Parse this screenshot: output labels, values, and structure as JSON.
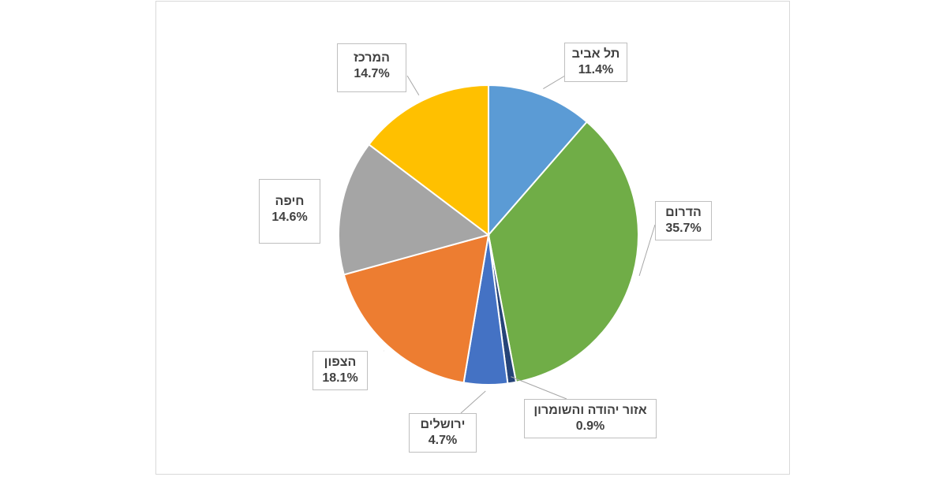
{
  "chart_data": {
    "type": "pie",
    "title": "",
    "slices": [
      {
        "label": "תל אביב",
        "value": 11.4,
        "value_label": "11.4%",
        "color": "#5b9bd5"
      },
      {
        "label": "הדרום",
        "value": 35.7,
        "value_label": "35.7%",
        "color": "#70ad47"
      },
      {
        "label": "אזור יהודה והשומרון",
        "value": 0.9,
        "value_label": "0.9%",
        "color": "#264478"
      },
      {
        "label": "ירושלים",
        "value": 4.7,
        "value_label": "4.7%",
        "color": "#4472c4"
      },
      {
        "label": "הצפון",
        "value": 18.1,
        "value_label": "18.1%",
        "color": "#ed7d31"
      },
      {
        "label": "חיפה",
        "value": 14.6,
        "value_label": "14.6%",
        "color": "#a5a5a5"
      },
      {
        "label": "המרכז",
        "value": 14.7,
        "value_label": "14.7%",
        "color": "#ffc000"
      }
    ],
    "start_angle": "12 o'clock",
    "direction": "clockwise",
    "legend": "none"
  }
}
